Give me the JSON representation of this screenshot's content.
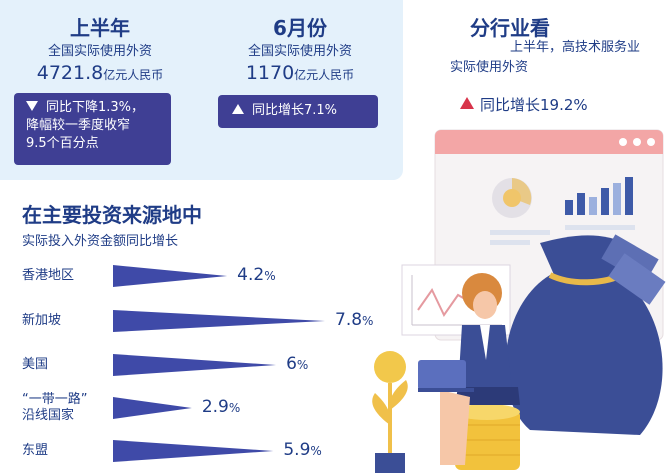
{
  "summary": {
    "half_year": {
      "title": "上半年",
      "subtitle": "全国实际使用外资",
      "value": "4721.8",
      "unit": "亿元人民币",
      "change_lines": [
        "同比下降1.3%，",
        "降幅较一季度收窄",
        "9.5个百分点"
      ]
    },
    "june": {
      "title": "6月份",
      "subtitle": "全国实际使用外资",
      "value": "1170",
      "unit": "亿元人民币",
      "change": "同比增长7.1%"
    }
  },
  "sectors": {
    "title": "分行业看",
    "subtitle_lines": [
      "上半年，高技术服务业",
      "实际使用外资"
    ],
    "growth": "同比增长19.2%"
  },
  "sources": {
    "title": "在主要投资来源地中",
    "subtitle": "实际投入外资金额同比增长"
  },
  "chart_data": {
    "type": "bar",
    "title": "在主要投资来源地中",
    "subtitle": "实际投入外资金额同比增长",
    "categories": [
      "香港地区",
      "新加坡",
      "美国",
      "“一带一路”沿线国家",
      "东盟"
    ],
    "category_lines": [
      [
        "香港地区"
      ],
      [
        "新加坡"
      ],
      [
        "美国"
      ],
      [
        "“一带一路”",
        "沿线国家"
      ],
      [
        "东盟"
      ]
    ],
    "values": [
      4.2,
      7.8,
      6,
      2.9,
      5.9
    ],
    "value_labels": [
      "4.2",
      "7.8",
      "6",
      "2.9",
      "5.9"
    ],
    "unit": "%",
    "color": "#3f4aa8",
    "orientation": "horizontal",
    "xlim": [
      0,
      7.8
    ],
    "grid": false
  },
  "colors": {
    "navy_text": "#1f3c86",
    "panel_bg": "#e4f1fb",
    "badge_bg": "#3f3f94",
    "bar": "#3f4aa8",
    "up_red": "#d8344a"
  }
}
